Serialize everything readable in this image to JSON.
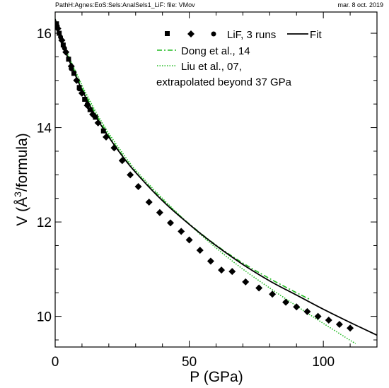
{
  "header": {
    "path_label": "PathH:Agnes:EoS:Sels:AnalSels1_LiF: file: VMov",
    "date_label": "mar. 8 oct. 2019"
  },
  "chart_data": {
    "type": "line",
    "title": "",
    "xlabel": "P (GPa)",
    "ylabel_main": "V (Å",
    "ylabel_sup": "3",
    "ylabel_tail": "/formula)",
    "xlim": [
      0,
      120
    ],
    "ylim": [
      9.35,
      16.45
    ],
    "x_ticks": [
      0,
      50,
      100
    ],
    "y_ticks": [
      10,
      12,
      14,
      16
    ],
    "x_tick_labels": [
      "0",
      "50",
      "100"
    ],
    "y_tick_labels": [
      "10",
      "12",
      "14",
      "16"
    ],
    "x_minor_step": 10,
    "y_minor_step": 0.5,
    "grid": false,
    "legend_position": "top-right",
    "legend": {
      "data_label": "LiF, 3 runs",
      "fit_label": "Fit",
      "dong_label": "Dong et al., 14",
      "liu_label_line1": "Liu et al., 07,",
      "liu_label_line2": "extrapolated beyond 37 GPa"
    },
    "fit": {
      "name": "Fit",
      "color": "#000000",
      "x": [
        0,
        2,
        5,
        10,
        15,
        20,
        25,
        30,
        40,
        50,
        60,
        70,
        80,
        90,
        100,
        110,
        120
      ],
      "y": [
        16.3,
        15.9,
        15.45,
        14.8,
        14.25,
        13.8,
        13.4,
        13.05,
        12.45,
        11.95,
        11.5,
        11.1,
        10.75,
        10.45,
        10.15,
        9.87,
        9.6
      ]
    },
    "dong": {
      "name": "Dong et al., 14",
      "color": "#22bb22",
      "x": [
        0,
        2,
        5,
        10,
        15,
        20,
        25,
        30,
        40,
        50,
        60,
        70,
        80,
        90,
        95
      ],
      "y": [
        16.3,
        15.92,
        15.5,
        14.85,
        14.3,
        13.83,
        13.42,
        13.06,
        12.47,
        11.96,
        11.51,
        11.13,
        10.8,
        10.5,
        10.36
      ]
    },
    "liu": {
      "name": "Liu et al., 07",
      "color": "#22bb22",
      "x": [
        0,
        2,
        5,
        10,
        15,
        20,
        25,
        30,
        40,
        50,
        60,
        70,
        80,
        90,
        100,
        112
      ],
      "y": [
        16.3,
        15.93,
        15.52,
        14.9,
        14.35,
        13.88,
        13.47,
        13.1,
        12.5,
        11.95,
        11.45,
        11.0,
        10.6,
        10.22,
        9.85,
        9.42
      ]
    },
    "data_series": [
      {
        "name": "LiF, 3 runs",
        "marker": "square",
        "x": [
          0.5,
          1.5,
          3,
          5,
          7,
          9,
          11,
          13,
          15,
          18
        ],
        "y": [
          16.2,
          16.0,
          15.75,
          15.45,
          15.15,
          14.85,
          14.6,
          14.38,
          14.22,
          13.93
        ]
      },
      {
        "name": "LiF, 3 runs",
        "marker": "diamond",
        "x": [
          1,
          2.5,
          4,
          6,
          8,
          10,
          12,
          14,
          16,
          19,
          22,
          25,
          28,
          31,
          35,
          39,
          43,
          47,
          50,
          54,
          58,
          62,
          66,
          71,
          76,
          81,
          86,
          90,
          94,
          98,
          102,
          106,
          110
        ],
        "y": [
          16.1,
          15.85,
          15.6,
          15.3,
          15.0,
          14.73,
          14.47,
          14.28,
          14.1,
          13.8,
          13.57,
          13.3,
          13.0,
          12.75,
          12.42,
          12.2,
          11.98,
          11.8,
          11.62,
          11.4,
          11.17,
          10.98,
          10.95,
          10.73,
          10.6,
          10.47,
          10.3,
          10.2,
          10.1,
          10.0,
          9.92,
          9.83,
          9.75
        ]
      },
      {
        "name": "LiF, 3 runs",
        "marker": "circle",
        "x": [
          0.8,
          2,
          3.5,
          6,
          9,
          12
        ],
        "y": [
          16.15,
          15.92,
          15.68,
          15.25,
          14.82,
          14.5
        ]
      }
    ]
  }
}
